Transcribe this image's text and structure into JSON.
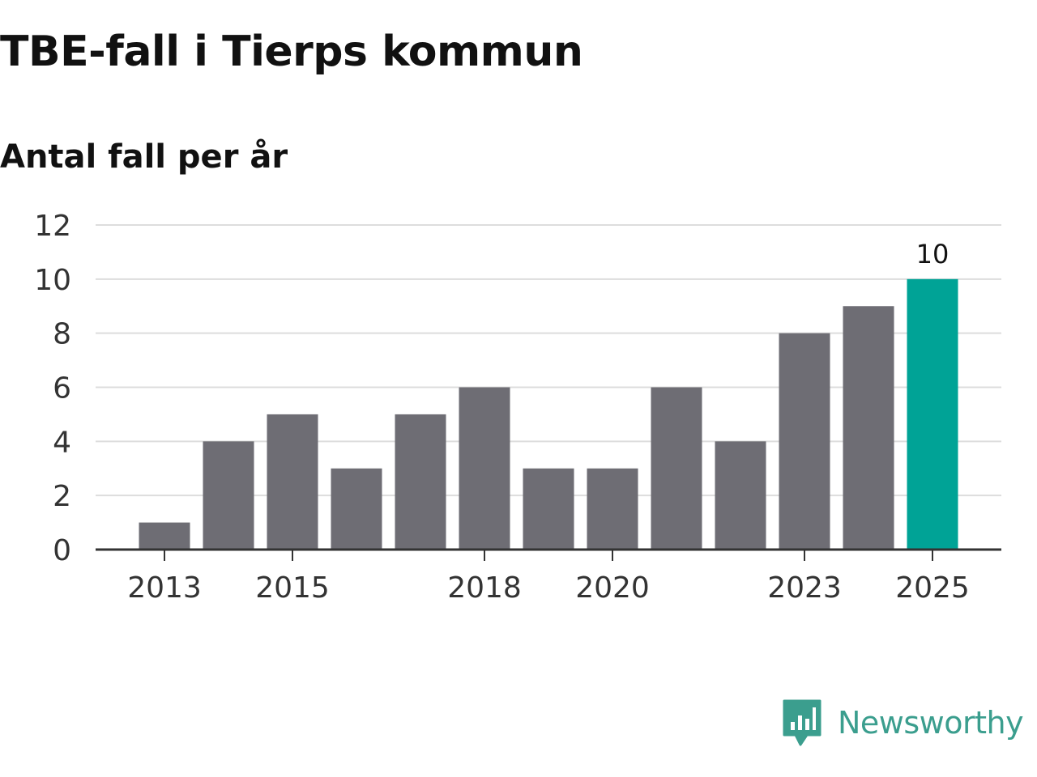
{
  "title": "TBE-fall i Tierps kommun",
  "subtitle": "Antal fall per år",
  "brand": {
    "name": "Newsworthy",
    "icon": "newsworthy-logo-icon",
    "color": "#3b9e8e"
  },
  "colors": {
    "bar": "#6e6d74",
    "highlight": "#00a396",
    "grid": "#dddddd",
    "axis": "#333333",
    "text": "#333333"
  },
  "chart_data": {
    "type": "bar",
    "title": "TBE-fall i Tierps kommun",
    "subtitle": "Antal fall per år",
    "xlabel": "",
    "ylabel": "",
    "categories": [
      "2013",
      "2014",
      "2015",
      "2016",
      "2017",
      "2018",
      "2019",
      "2020",
      "2021",
      "2022",
      "2023",
      "2024",
      "2025"
    ],
    "values": [
      1,
      4,
      5,
      3,
      5,
      6,
      3,
      3,
      6,
      4,
      8,
      9,
      10
    ],
    "x_tick_labels": [
      "2013",
      "2015",
      "2018",
      "2020",
      "2023",
      "2025"
    ],
    "y_ticks": [
      "0",
      "2",
      "4",
      "6",
      "8",
      "10",
      "12"
    ],
    "ylim": [
      0,
      12
    ],
    "grid": true,
    "highlight": {
      "category": "2025",
      "label": "10"
    }
  }
}
